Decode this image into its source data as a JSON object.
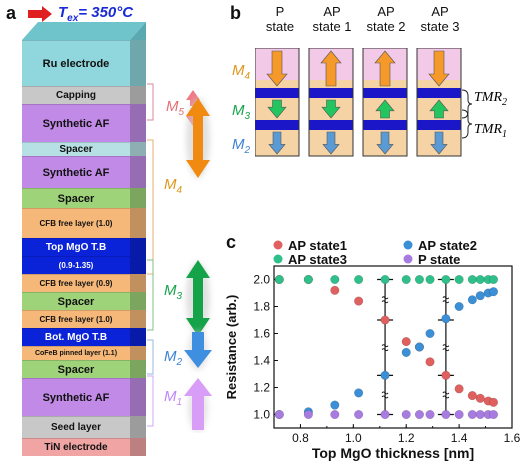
{
  "panel_a": {
    "letter": "a",
    "temperature_label": "T",
    "temperature_sub": "ex",
    "temperature_value": "= 350°C",
    "layers": [
      {
        "label": "Ru electrode",
        "color": "#8fd6dd"
      },
      {
        "label": "Capping",
        "color": "#c8c8c8"
      },
      {
        "label": "Synthetic AF",
        "color": "#c08ae6"
      },
      {
        "label": "Spacer",
        "color": "#b6e0e4"
      },
      {
        "label": "Synthetic AF",
        "color": "#c08ae6"
      },
      {
        "label": "Spacer",
        "color": "#9fd37a"
      },
      {
        "label": "CFB free layer (1.0)",
        "color": "#f6b878"
      },
      {
        "label": "Top MgO T.B",
        "color": "#0a22d8"
      },
      {
        "label": "(0.9-1.35)",
        "color": "#0a22d8"
      },
      {
        "label": "CFB free layer (0.9)",
        "color": "#f6b878"
      },
      {
        "label": "Spacer",
        "color": "#9fd37a"
      },
      {
        "label": "CFB free layer (1.0)",
        "color": "#f6b878"
      },
      {
        "label": "Bot. MgO T.B",
        "color": "#0a22d8"
      },
      {
        "label": "CoFeB pinned layer (1.1)",
        "color": "#f6b878"
      },
      {
        "label": "Spacer",
        "color": "#9fd37a"
      },
      {
        "label": "Synthetic AF",
        "color": "#c08ae6"
      },
      {
        "label": "Seed layer",
        "color": "#c8c8c8"
      },
      {
        "label": "TiN electrode",
        "color": "#f1a4a4"
      }
    ],
    "moments": [
      {
        "label": "M",
        "sub": "5",
        "color": "#e36d77"
      },
      {
        "label": "M",
        "sub": "4",
        "color": "#e0951c"
      },
      {
        "label": "M",
        "sub": "3",
        "color": "#16a34a"
      },
      {
        "label": "M",
        "sub": "2",
        "color": "#3b82d6"
      },
      {
        "label": "M",
        "sub": "1",
        "color": "#c084fc"
      }
    ]
  },
  "panel_b": {
    "letter": "b",
    "states": [
      {
        "line1": "P",
        "line2": "state"
      },
      {
        "line1": "AP",
        "line2": "state 1"
      },
      {
        "line1": "AP",
        "line2": "state 2"
      },
      {
        "line1": "AP",
        "line2": "state 3"
      }
    ],
    "moments": [
      {
        "label": "M",
        "sub": "4",
        "color": "#e0951c"
      },
      {
        "label": "M",
        "sub": "3",
        "color": "#16a34a"
      },
      {
        "label": "M",
        "sub": "2",
        "color": "#3b82d6"
      }
    ],
    "tmr": [
      {
        "label": "TMR",
        "sub": "2"
      },
      {
        "label": "TMR",
        "sub": "1"
      }
    ]
  },
  "panel_c": {
    "letter": "c"
  },
  "chart_data": {
    "type": "scatter",
    "xlabel": "Top MgO thickness [nm]",
    "ylabel": "Resistance (arb.)",
    "xlim": [
      0.7,
      1.6
    ],
    "ylim": [
      0.9,
      2.1
    ],
    "xticks": [
      "0.8",
      "1.0",
      "1.2",
      "1.4",
      "1.6"
    ],
    "yticks": [
      "1.0",
      "1.2",
      "1.4",
      "1.6",
      "1.8",
      "2.0"
    ],
    "legend_position": "top",
    "series": [
      {
        "name": "AP state1",
        "color": "#e06060",
        "x": [
          0.72,
          0.83,
          0.93,
          1.02,
          1.12,
          1.2,
          1.25,
          1.29,
          1.35,
          1.4,
          1.45,
          1.48,
          1.51,
          1.53
        ],
        "y": [
          2.0,
          2.0,
          1.92,
          1.84,
          1.7,
          1.54,
          1.5,
          1.39,
          1.29,
          1.19,
          1.14,
          1.12,
          1.1,
          1.09
        ]
      },
      {
        "name": "AP state2",
        "color": "#3a8fd6",
        "x": [
          0.72,
          0.83,
          0.93,
          1.02,
          1.12,
          1.2,
          1.25,
          1.29,
          1.35,
          1.4,
          1.45,
          1.48,
          1.51,
          1.53
        ],
        "y": [
          1.0,
          1.02,
          1.07,
          1.16,
          1.29,
          1.46,
          1.5,
          1.6,
          1.71,
          1.8,
          1.85,
          1.88,
          1.9,
          1.91
        ]
      },
      {
        "name": "AP state3",
        "color": "#2fbf8a",
        "x": [
          0.72,
          0.83,
          0.93,
          1.02,
          1.12,
          1.2,
          1.25,
          1.29,
          1.35,
          1.4,
          1.45,
          1.48,
          1.51,
          1.53
        ],
        "y": [
          2.0,
          2.0,
          2.0,
          2.0,
          2.0,
          2.0,
          2.0,
          2.0,
          2.0,
          2.0,
          2.0,
          2.0,
          2.0,
          2.0
        ]
      },
      {
        "name": "P state",
        "color": "#a77be0",
        "x": [
          0.72,
          0.83,
          0.93,
          1.02,
          1.12,
          1.2,
          1.25,
          1.29,
          1.35,
          1.4,
          1.45,
          1.48,
          1.51,
          1.53
        ],
        "y": [
          1.0,
          1.0,
          1.0,
          1.0,
          1.0,
          1.0,
          1.0,
          1.0,
          1.0,
          1.0,
          1.0,
          1.0,
          1.0,
          1.0
        ]
      }
    ],
    "annotations": [
      {
        "x": 1.12,
        "points": [
          1.0,
          1.29,
          1.7,
          2.0
        ]
      },
      {
        "x": 1.35,
        "points": [
          1.0,
          1.29,
          1.7,
          2.0
        ]
      }
    ]
  }
}
